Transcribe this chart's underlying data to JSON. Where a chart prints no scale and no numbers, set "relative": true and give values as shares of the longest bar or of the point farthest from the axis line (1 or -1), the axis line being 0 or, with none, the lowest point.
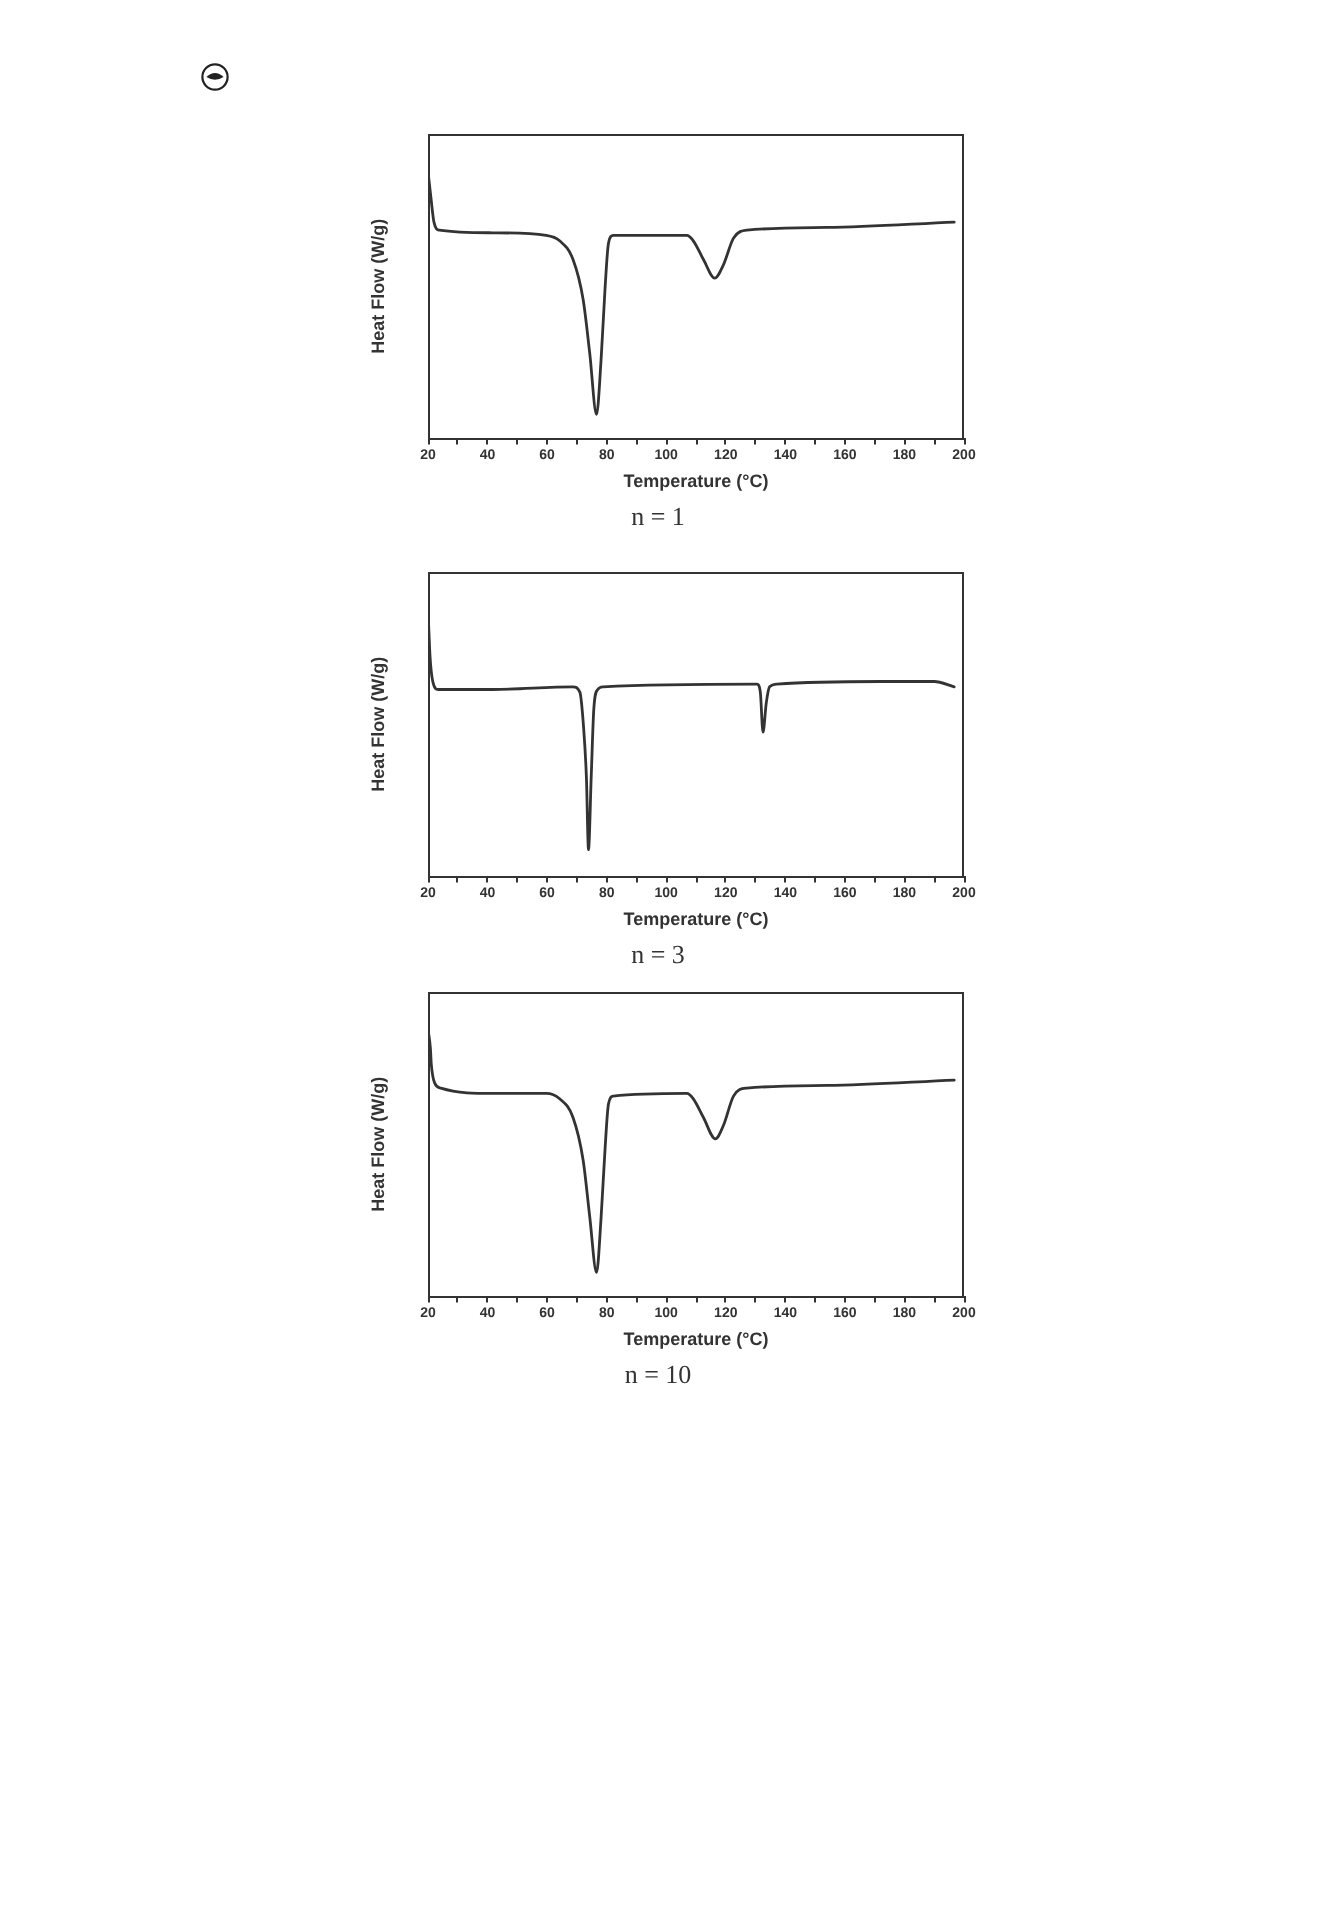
{
  "chart_data": [
    {
      "type": "line",
      "title": "n = 1",
      "xlabel": "Temperature (°C)",
      "ylabel": "Heat Flow (W/g)",
      "relative": true,
      "color": "#333333",
      "marker": "none",
      "line_style": "solid",
      "xlim": [
        20,
        200
      ],
      "xticks": [
        20,
        {
          "value": 30,
          "label": null
        },
        40,
        {
          "value": 50,
          "label": null
        },
        60,
        {
          "value": 70,
          "label": null
        },
        80,
        {
          "value": 90,
          "label": null
        },
        100,
        {
          "value": 110,
          "label": null
        },
        120,
        {
          "value": 130,
          "label": null
        },
        140,
        {
          "value": 150,
          "label": null
        },
        160,
        {
          "value": 170,
          "label": null
        },
        180,
        {
          "value": 190,
          "label": null
        },
        200
      ],
      "x": [
        20,
        21,
        22,
        23.8,
        41.8,
        59.7,
        64.2,
        68.7,
        72.1,
        74.3,
        76.6,
        78.1,
        79.5,
        80.6,
        82.2,
        106.9,
        109.1,
        112.5,
        116.3,
        119.2,
        122.6,
        127.1,
        154,
        196.7
      ],
      "values": [
        1,
        0.9,
        0.81,
        0.78,
        0.77,
        0.76,
        0.74,
        0.67,
        0.52,
        0.32,
        0.09,
        0.29,
        0.57,
        0.73,
        0.76,
        0.76,
        0.74,
        0.67,
        0.6,
        0.65,
        0.75,
        0.78,
        0.79,
        0.81
      ]
    },
    {
      "type": "line",
      "title": "n = 3",
      "xlabel": "Temperature (°C)",
      "ylabel": "Heat Flow (W/g)",
      "relative": true,
      "color": "#333333",
      "marker": "none",
      "line_style": "solid",
      "xlim": [
        20,
        200
      ],
      "xticks": [
        20,
        {
          "value": 30,
          "label": null
        },
        40,
        {
          "value": 50,
          "label": null
        },
        60,
        {
          "value": 70,
          "label": null
        },
        80,
        {
          "value": 90,
          "label": null
        },
        100,
        {
          "value": 110,
          "label": null
        },
        120,
        {
          "value": 130,
          "label": null
        },
        140,
        {
          "value": 150,
          "label": null
        },
        160,
        {
          "value": 170,
          "label": null
        },
        180,
        {
          "value": 190,
          "label": null
        },
        200
      ],
      "x": [
        20,
        20.7,
        21.6,
        23.4,
        41.8,
        68.7,
        71,
        72.3,
        73.2,
        73.9,
        74.8,
        75.7,
        77,
        78.8,
        130.5,
        131.6,
        132.5,
        133.6,
        134.7,
        137.2,
        172,
        190,
        196.7
      ],
      "values": [
        1,
        0.82,
        0.73,
        0.7,
        0.7,
        0.71,
        0.69,
        0.55,
        0.37,
        0.1,
        0.37,
        0.63,
        0.7,
        0.71,
        0.72,
        0.69,
        0.54,
        0.65,
        0.71,
        0.72,
        0.73,
        0.73,
        0.71
      ]
    },
    {
      "type": "line",
      "title": "n = 10",
      "xlabel": "Temperature (°C)",
      "ylabel": "Heat Flow (W/g)",
      "relative": true,
      "color": "#333333",
      "marker": "none",
      "line_style": "solid",
      "xlim": [
        20,
        200
      ],
      "xticks": [
        20,
        {
          "value": 30,
          "label": null
        },
        40,
        {
          "value": 50,
          "label": null
        },
        60,
        {
          "value": 70,
          "label": null
        },
        80,
        {
          "value": 90,
          "label": null
        },
        100,
        {
          "value": 110,
          "label": null
        },
        120,
        {
          "value": 130,
          "label": null
        },
        140,
        {
          "value": 150,
          "label": null
        },
        160,
        {
          "value": 170,
          "label": null
        },
        180,
        {
          "value": 190,
          "label": null
        },
        200
      ],
      "x": [
        20,
        20.8,
        21.1,
        22.2,
        24.3,
        41.8,
        59.7,
        64.2,
        68.7,
        72.1,
        74.3,
        76.6,
        78.1,
        79.5,
        80.6,
        82.2,
        106.9,
        109.1,
        112.5,
        116.5,
        119.2,
        122.6,
        127.1,
        154,
        196.7
      ],
      "values": [
        1,
        0.93,
        0.87,
        0.8,
        0.78,
        0.76,
        0.76,
        0.74,
        0.67,
        0.51,
        0.3,
        0.09,
        0.29,
        0.56,
        0.72,
        0.75,
        0.76,
        0.74,
        0.67,
        0.59,
        0.64,
        0.75,
        0.78,
        0.79,
        0.81
      ]
    }
  ]
}
